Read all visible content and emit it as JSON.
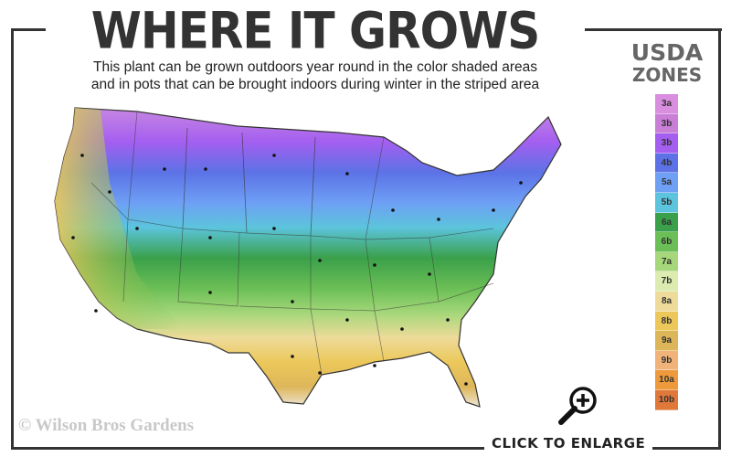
{
  "title": "WHERE IT GROWS",
  "subtitle": [
    "This plant can be grown outdoors year round in the color shaded areas",
    "and in pots that can be brought indoors during winter in the striped area"
  ],
  "legend": {
    "title_line1": "USDA",
    "title_line2": "ZONES",
    "zones": [
      {
        "label": "3a",
        "color": "#d98ee0"
      },
      {
        "label": "3b",
        "color": "#c97fd6"
      },
      {
        "label": "3b",
        "color": "#a45ff0"
      },
      {
        "label": "4b",
        "color": "#5c72e6"
      },
      {
        "label": "5a",
        "color": "#6ea0f5"
      },
      {
        "label": "5b",
        "color": "#5cc4dc"
      },
      {
        "label": "6a",
        "color": "#3aa04a"
      },
      {
        "label": "6b",
        "color": "#6cbf56"
      },
      {
        "label": "7a",
        "color": "#a6d77a"
      },
      {
        "label": "7b",
        "color": "#dcebb0"
      },
      {
        "label": "8a",
        "color": "#eedb9a"
      },
      {
        "label": "8b",
        "color": "#ecc85a"
      },
      {
        "label": "9a",
        "color": "#deb65a"
      },
      {
        "label": "9b",
        "color": "#f0b47a"
      },
      {
        "label": "10a",
        "color": "#ee9a3c"
      },
      {
        "label": "10b",
        "color": "#e0783a"
      }
    ]
  },
  "copyright": "© Wilson Bros Gardens",
  "enlarge_label": "CLICK TO ENLARGE",
  "icons": {
    "enlarge": "magnifier-plus-icon"
  }
}
